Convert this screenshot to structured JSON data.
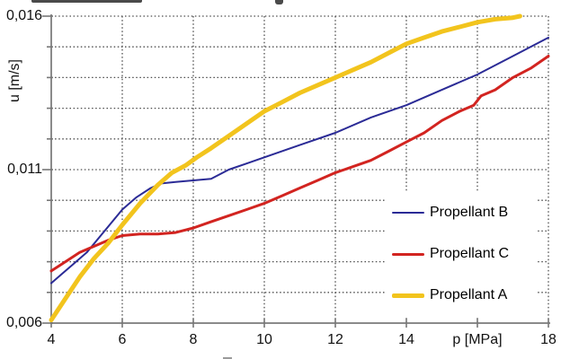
{
  "window": {
    "background": "#ffffff",
    "note_top_edge": "clipped dark remnant of chart title at very top edge"
  },
  "chart_data": {
    "type": "line",
    "title": "",
    "xlabel": "p [MPa]",
    "ylabel": "u [m/s]",
    "xlim": [
      4,
      18
    ],
    "ylim": [
      0.006,
      0.016
    ],
    "x_ticks": [
      4,
      6,
      8,
      10,
      12,
      14,
      16,
      18
    ],
    "x_tick_labels": [
      "4",
      "6",
      "8",
      "10",
      "12",
      "14",
      "p [MPa]",
      "18"
    ],
    "y_ticks": [
      0.006,
      0.011,
      0.016
    ],
    "y_tick_labels": [
      "0,006",
      "0,011",
      "0,016"
    ],
    "y_minor_tick_step": 0.001,
    "grid": {
      "style": "dotted",
      "color": "#4d4d4d",
      "horizontal_step": 0.001,
      "vertical_step": 2
    },
    "axis_color": "#8a8a8a",
    "legend_position": "center-right, white opaque background, no border",
    "series": [
      {
        "name": "Propellant B",
        "color": "#2b2b96",
        "width": 2,
        "points": [
          [
            4,
            0.0073
          ],
          [
            4.3,
            0.0076
          ],
          [
            4.6,
            0.0079
          ],
          [
            5,
            0.0083
          ],
          [
            5.5,
            0.009
          ],
          [
            6,
            0.0097
          ],
          [
            6.4,
            0.0101
          ],
          [
            6.8,
            0.0104
          ],
          [
            7.1,
            0.01055
          ],
          [
            7.5,
            0.0106
          ],
          [
            8,
            0.01065
          ],
          [
            8.5,
            0.0107
          ],
          [
            9,
            0.011
          ],
          [
            9.5,
            0.0112
          ],
          [
            10,
            0.0114
          ],
          [
            11,
            0.0118
          ],
          [
            12,
            0.0122
          ],
          [
            13,
            0.0127
          ],
          [
            14,
            0.0131
          ],
          [
            15,
            0.0136
          ],
          [
            16,
            0.0141
          ],
          [
            17,
            0.0147
          ],
          [
            18,
            0.0153
          ]
        ]
      },
      {
        "name": "Propellant C",
        "color": "#d22420",
        "width": 3,
        "points": [
          [
            4,
            0.0077
          ],
          [
            4.4,
            0.008
          ],
          [
            4.8,
            0.0083
          ],
          [
            5.2,
            0.0085
          ],
          [
            5.6,
            0.0087
          ],
          [
            6,
            0.00885
          ],
          [
            6.5,
            0.0089
          ],
          [
            7,
            0.0089
          ],
          [
            7.5,
            0.00895
          ],
          [
            8,
            0.0091
          ],
          [
            8.5,
            0.0093
          ],
          [
            9,
            0.0095
          ],
          [
            9.5,
            0.0097
          ],
          [
            10,
            0.0099
          ],
          [
            10.5,
            0.01015
          ],
          [
            11,
            0.0104
          ],
          [
            11.5,
            0.01065
          ],
          [
            12,
            0.0109
          ],
          [
            12.5,
            0.0111
          ],
          [
            13,
            0.0113
          ],
          [
            13.5,
            0.0116
          ],
          [
            14,
            0.0119
          ],
          [
            14.5,
            0.0122
          ],
          [
            15,
            0.0126
          ],
          [
            15.5,
            0.0129
          ],
          [
            15.9,
            0.0131
          ],
          [
            16.1,
            0.0134
          ],
          [
            16.5,
            0.0136
          ],
          [
            17,
            0.014
          ],
          [
            17.5,
            0.0143
          ],
          [
            18,
            0.0147
          ]
        ]
      },
      {
        "name": "Propellant A",
        "color": "#f2c41d",
        "width": 5,
        "points": [
          [
            4,
            0.0061
          ],
          [
            4.4,
            0.0068
          ],
          [
            4.8,
            0.0075
          ],
          [
            5.2,
            0.0081
          ],
          [
            5.6,
            0.0086
          ],
          [
            6,
            0.0092
          ],
          [
            6.5,
            0.0099
          ],
          [
            7,
            0.0105
          ],
          [
            7.4,
            0.0109
          ],
          [
            7.8,
            0.01115
          ],
          [
            8.1,
            0.0114
          ],
          [
            8.5,
            0.0117
          ],
          [
            9,
            0.0121
          ],
          [
            9.5,
            0.0125
          ],
          [
            10,
            0.0129
          ],
          [
            10.5,
            0.0132
          ],
          [
            11,
            0.0135
          ],
          [
            11.5,
            0.01375
          ],
          [
            12,
            0.014
          ],
          [
            12.5,
            0.01425
          ],
          [
            13,
            0.0145
          ],
          [
            13.5,
            0.0148
          ],
          [
            14,
            0.0151
          ],
          [
            14.5,
            0.0153
          ],
          [
            15,
            0.0155
          ],
          [
            15.5,
            0.01565
          ],
          [
            16,
            0.0158
          ],
          [
            16.5,
            0.0159
          ],
          [
            17,
            0.01595
          ],
          [
            17.2,
            0.016
          ]
        ]
      }
    ]
  },
  "legend": {
    "items": [
      {
        "label": "Propellant B"
      },
      {
        "label": "Propellant C"
      },
      {
        "label": "Propellant A"
      }
    ]
  }
}
